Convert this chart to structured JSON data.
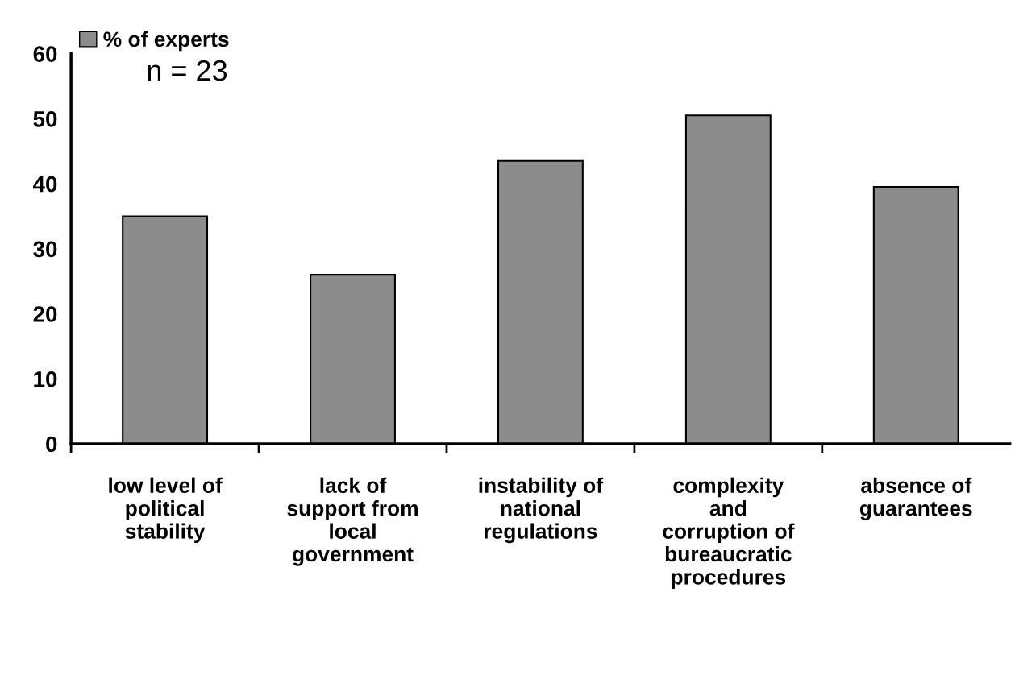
{
  "chart_data": {
    "type": "bar",
    "categories": [
      "low level of\npolitical\nstability",
      "lack of\nsupport from\nlocal\ngovernment",
      "instability of\nnational\nregulations",
      "complexity\nand\ncorruption of\nbureaucratic\nprocedures",
      "absence of\nguarantees"
    ],
    "series": [
      {
        "name": "% of experts",
        "color": "#8c8c8c",
        "values": [
          35,
          26,
          43.5,
          50.5,
          39.5
        ]
      }
    ],
    "ylim": [
      0,
      60
    ],
    "yticks": [
      0,
      10,
      20,
      30,
      40,
      50,
      60
    ],
    "annotations": [
      "n = 23"
    ],
    "legend": "top left",
    "grid": false
  }
}
